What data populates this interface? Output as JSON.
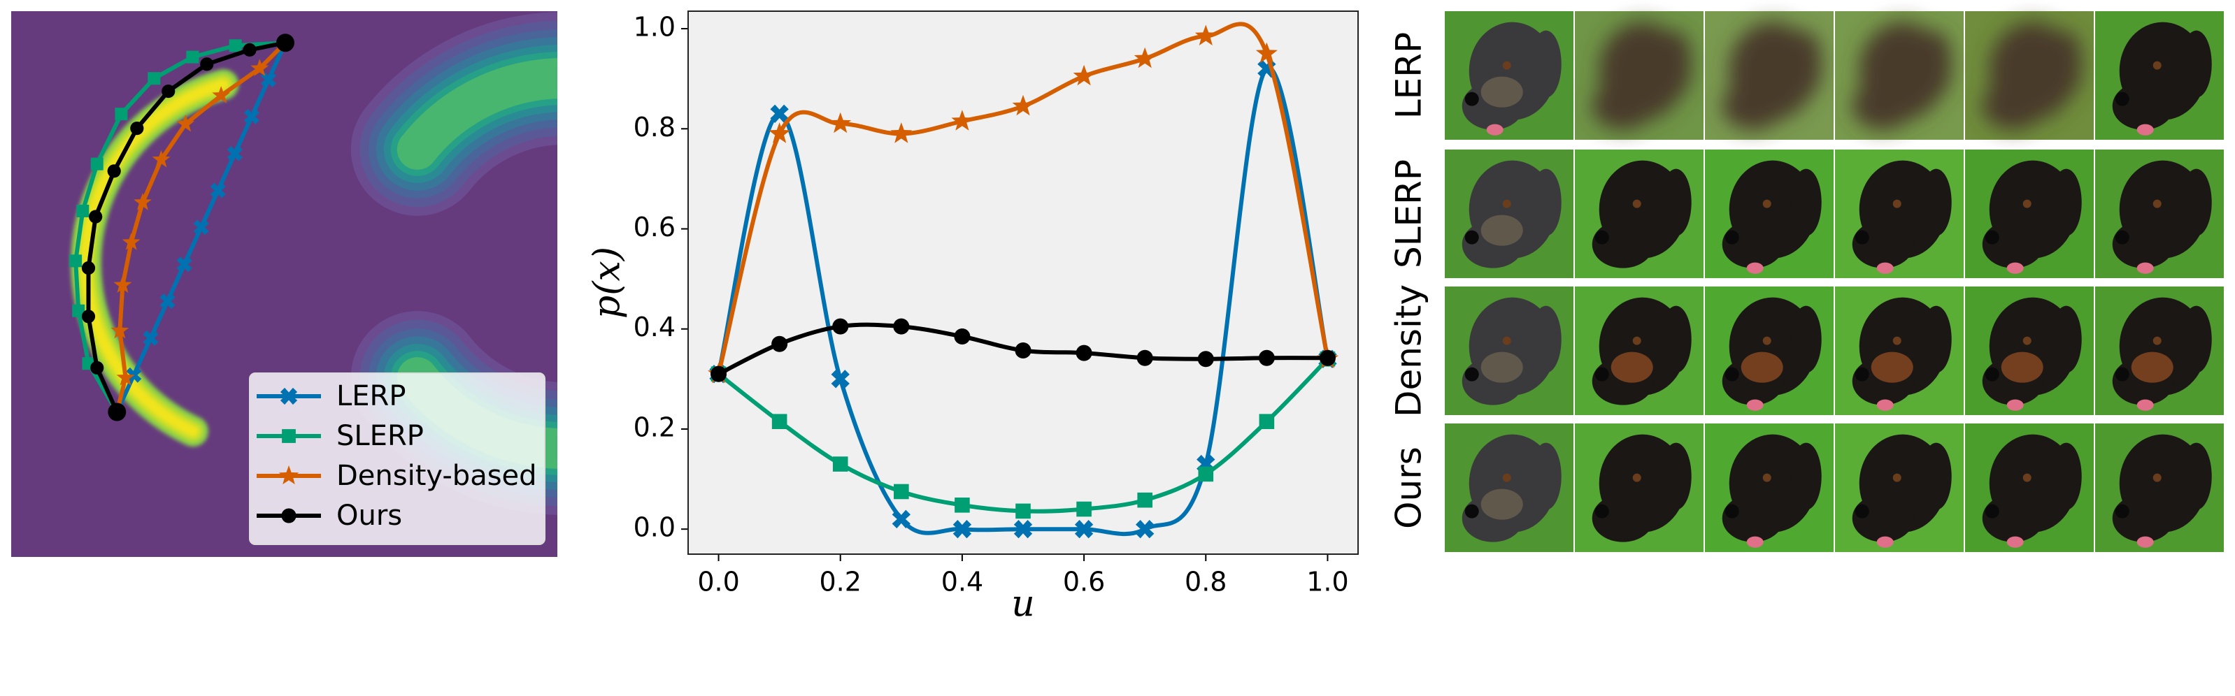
{
  "chart_data": [
    {
      "type": "contour",
      "legend": "lower right",
      "series": [
        {
          "name": "LERP",
          "color": "#0072b2",
          "marker": "x"
        },
        {
          "name": "SLERP",
          "color": "#009e73",
          "marker": "square"
        },
        {
          "name": "Density-based",
          "color": "#d55e00",
          "marker": "star"
        },
        {
          "name": "Ours",
          "color": "#000000",
          "marker": "circle"
        }
      ]
    },
    {
      "type": "line",
      "xlabel": "u",
      "ylabel": "p(x)",
      "x": [
        0,
        0.1,
        0.2,
        0.3,
        0.4,
        0.5,
        0.6,
        0.7,
        0.8,
        0.9,
        1
      ],
      "series": [
        {
          "color": "#0072b2",
          "marker": "x",
          "values": [
            0.31,
            0.83,
            0.3,
            0.02,
            0.0,
            0.0,
            0.0,
            0.0,
            0.13,
            0.92,
            0.34
          ]
        },
        {
          "color": "#009e73",
          "marker": "square",
          "values": [
            0.31,
            0.215,
            0.13,
            0.075,
            0.048,
            0.036,
            0.04,
            0.058,
            0.11,
            0.215,
            0.34
          ]
        },
        {
          "color": "#d55e00",
          "marker": "star",
          "values": [
            0.31,
            0.79,
            0.81,
            0.79,
            0.815,
            0.845,
            0.905,
            0.94,
            0.985,
            0.95,
            0.34
          ]
        },
        {
          "color": "#000000",
          "marker": "circle",
          "values": [
            0.31,
            0.37,
            0.405,
            0.405,
            0.385,
            0.357,
            0.352,
            0.342,
            0.34,
            0.342,
            0.342
          ]
        }
      ],
      "xlim": [
        -0.05,
        1.05
      ],
      "ylim": [
        -0.05,
        1.035
      ],
      "xticks": [
        {
          "value": 0,
          "label": "0.0"
        },
        0.2,
        0.4,
        0.6,
        0.8,
        {
          "value": 1,
          "label": "1.0"
        }
      ],
      "yticks": [
        {
          "value": 0,
          "label": "0.0"
        },
        0.2,
        0.4,
        0.6,
        0.8,
        {
          "value": 1,
          "label": "1.0"
        }
      ],
      "background": "#f0f0f0",
      "grid": false
    }
  ],
  "image_grid": {
    "rows": [
      {
        "label": "LERP",
        "color": "#0072b2"
      },
      {
        "label": "SLERP",
        "color": "#009e73"
      },
      {
        "label": "Density",
        "color": "#d55e00"
      },
      {
        "label": "Ours",
        "color": "#000000"
      }
    ]
  }
}
